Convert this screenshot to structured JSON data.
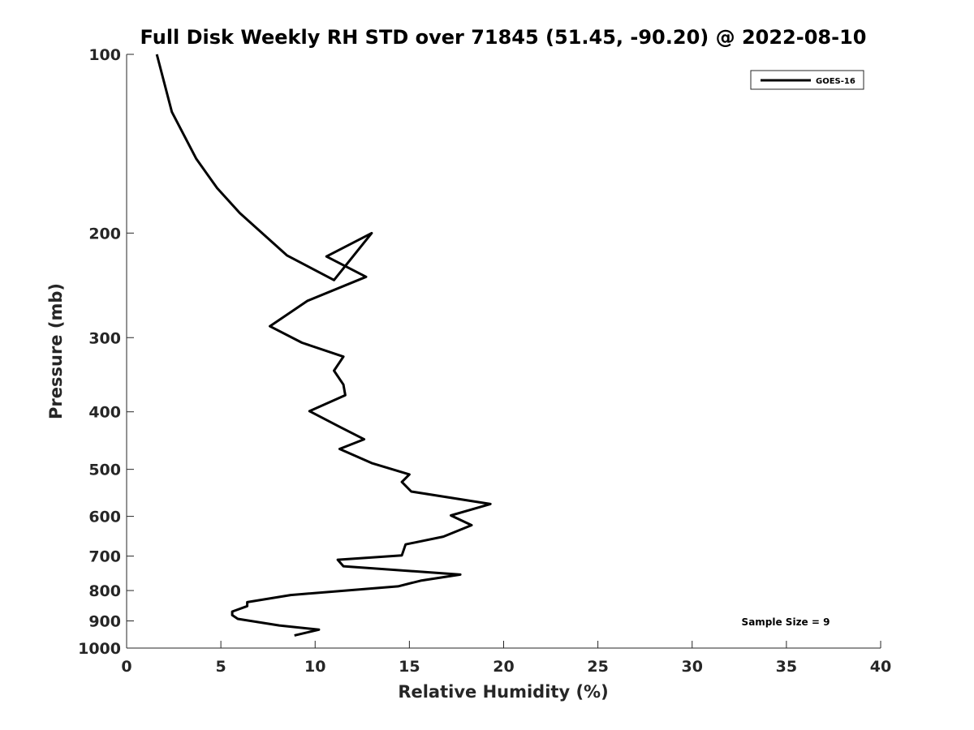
{
  "chart_data": {
    "type": "line",
    "title": "Full Disk Weekly RH STD over 71845 (51.45, -90.20) @ 2022-08-10",
    "xlabel": "Relative Humidity (%)",
    "ylabel": "Pressure (mb)",
    "xlim": [
      0,
      40
    ],
    "ylim": [
      100,
      1000
    ],
    "y_scale": "log",
    "y_reversed": true,
    "x_ticks": [
      0,
      5,
      10,
      15,
      20,
      25,
      30,
      35,
      40
    ],
    "y_ticks": [
      100,
      200,
      300,
      400,
      500,
      600,
      700,
      800,
      900,
      1000
    ],
    "grid": false,
    "legend_position": "top-right",
    "series": [
      {
        "name": "GOES-16",
        "color": "#000000",
        "points": [
          [
            1.6,
            100
          ],
          [
            2.4,
            125
          ],
          [
            3.7,
            150
          ],
          [
            4.8,
            168
          ],
          [
            6.0,
            185
          ],
          [
            8.5,
            218
          ],
          [
            11.0,
            240
          ],
          [
            13.0,
            200
          ],
          [
            10.6,
            219
          ],
          [
            12.7,
            237
          ],
          [
            9.6,
            260
          ],
          [
            7.6,
            287
          ],
          [
            9.3,
            306
          ],
          [
            11.5,
            323
          ],
          [
            11.0,
            341
          ],
          [
            11.5,
            360
          ],
          [
            11.6,
            375
          ],
          [
            9.7,
            399
          ],
          [
            11.3,
            424
          ],
          [
            12.6,
            445
          ],
          [
            11.3,
            462
          ],
          [
            13.0,
            488
          ],
          [
            15.0,
            510
          ],
          [
            14.6,
            525
          ],
          [
            15.1,
            545
          ],
          [
            19.3,
            572
          ],
          [
            17.2,
            598
          ],
          [
            18.3,
            621
          ],
          [
            16.8,
            649
          ],
          [
            14.8,
            669
          ],
          [
            14.6,
            698
          ],
          [
            11.2,
            710
          ],
          [
            11.5,
            728
          ],
          [
            17.7,
            752
          ],
          [
            15.6,
            770
          ],
          [
            14.4,
            787
          ],
          [
            8.7,
            814
          ],
          [
            6.4,
            837
          ],
          [
            6.4,
            850
          ],
          [
            5.6,
            868
          ],
          [
            5.6,
            880
          ],
          [
            5.9,
            893
          ],
          [
            8.1,
            916
          ],
          [
            10.2,
            931
          ],
          [
            8.9,
            952
          ]
        ]
      }
    ],
    "annotations": [
      "Sample Size = 9"
    ]
  }
}
